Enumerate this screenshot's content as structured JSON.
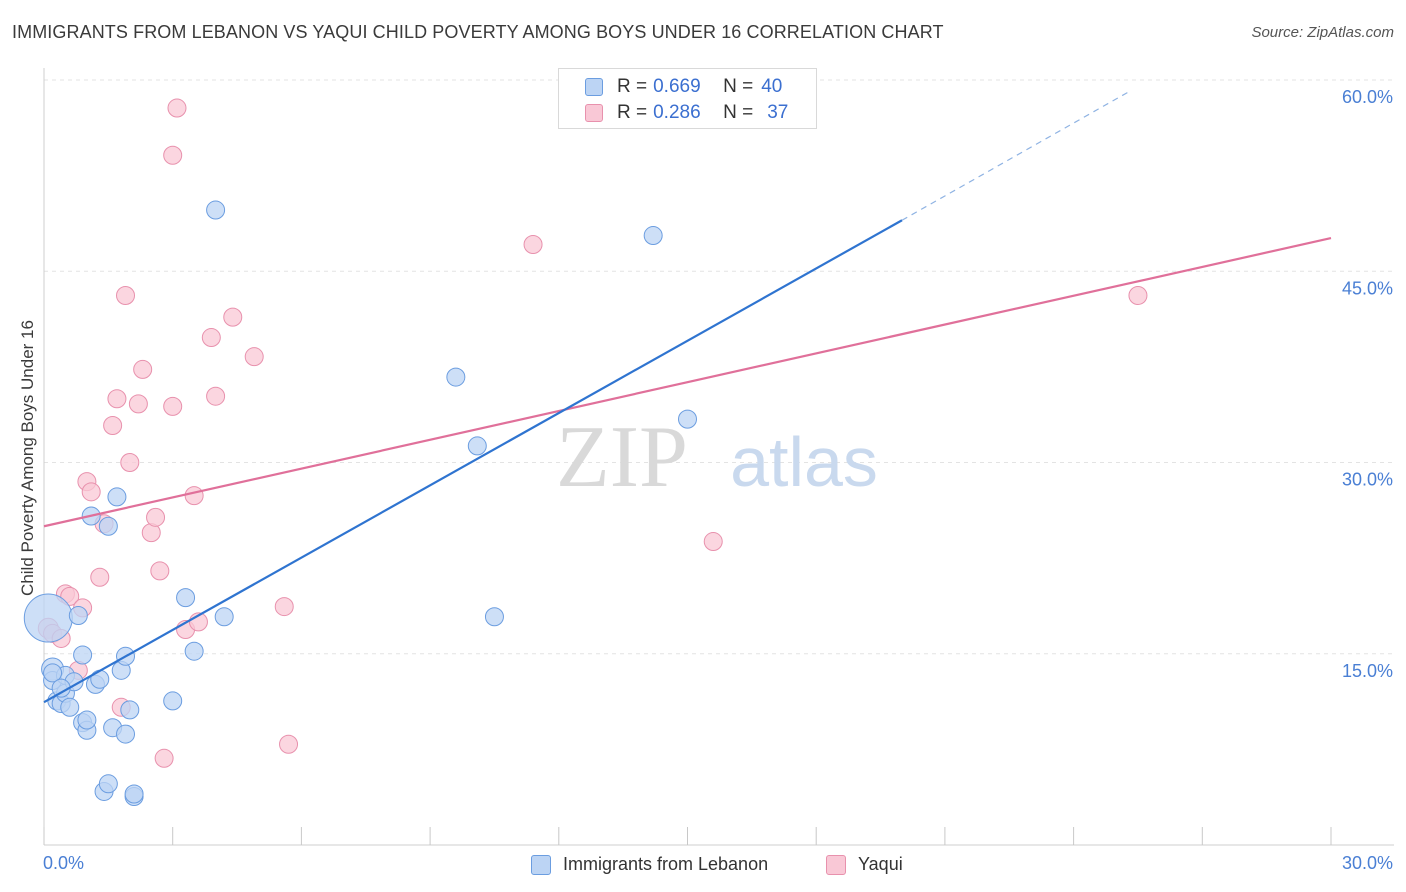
{
  "header": {
    "title": "IMMIGRANTS FROM LEBANON VS YAQUI CHILD POVERTY AMONG BOYS UNDER 16 CORRELATION CHART",
    "source": "Source: ZipAtlas.com"
  },
  "legend_top": {
    "rows": [
      {
        "r_label": "R =",
        "r_value": "0.669",
        "n_label": "N =",
        "n_value": "40"
      },
      {
        "r_label": "R =",
        "r_value": "0.286",
        "n_label": "N =",
        "n_value": "37"
      }
    ]
  },
  "legend_bottom": {
    "items": [
      "Immigrants from Lebanon",
      "Yaqui"
    ]
  },
  "watermark": {
    "zip": "ZIP",
    "atlas": "atlas"
  },
  "colors": {
    "blue_fill": "#bcd4f4",
    "blue_stroke": "#6b9de0",
    "blue_line": "#2f74d0",
    "pink_fill": "#f9c8d6",
    "pink_stroke": "#e891ad",
    "pink_line": "#e0709a",
    "tick_label": "#4a7fd4",
    "grid": "#e3e3e3"
  },
  "chart_data": {
    "type": "scatter",
    "title": "IMMIGRANTS FROM LEBANON VS YAQUI CHILD POVERTY AMONG BOYS UNDER 16 CORRELATION CHART",
    "xlabel": "",
    "ylabel": "Child Poverty Among Boys Under 16",
    "xlim": [
      0,
      30
    ],
    "ylim": [
      0,
      60
    ],
    "x_tick_labels": [
      {
        "value": 0,
        "label": "0.0%"
      },
      {
        "value": 30,
        "label": "30.0%"
      }
    ],
    "y_tick_labels": [
      {
        "value": 15,
        "label": "15.0%"
      },
      {
        "value": 30,
        "label": "30.0%"
      },
      {
        "value": 45,
        "label": "45.0%"
      },
      {
        "value": 60,
        "label": "60.0%"
      }
    ],
    "grid": true,
    "series": [
      {
        "name": "Immigrants from Lebanon",
        "R": 0.669,
        "N": 40,
        "trend": {
          "x0": 0,
          "y0": 11.2,
          "x1": 20.0,
          "y1": 49.0,
          "dashed_to_x": 25.3,
          "dashed_to_y": 59.1
        },
        "points": [
          [
            0.1,
            17.8,
            24
          ],
          [
            0.2,
            13.8,
            11
          ],
          [
            0.2,
            12.9,
            9
          ],
          [
            0.3,
            11.3,
            9
          ],
          [
            0.4,
            11.1,
            9
          ],
          [
            0.5,
            11.9,
            9
          ],
          [
            0.5,
            13.3,
            9
          ],
          [
            0.6,
            10.8,
            9
          ],
          [
            0.7,
            12.8,
            9
          ],
          [
            0.8,
            18.0,
            9
          ],
          [
            0.9,
            14.9,
            9
          ],
          [
            0.9,
            9.6,
            9
          ],
          [
            1.0,
            9.0,
            9
          ],
          [
            1.1,
            25.8,
            9
          ],
          [
            1.2,
            12.6,
            9
          ],
          [
            1.3,
            13.0,
            9
          ],
          [
            1.4,
            4.2,
            9
          ],
          [
            1.5,
            4.8,
            9
          ],
          [
            1.5,
            25.0,
            9
          ],
          [
            1.6,
            9.2,
            9
          ],
          [
            1.7,
            27.3,
            9
          ],
          [
            1.8,
            13.7,
            9
          ],
          [
            1.9,
            8.7,
            9
          ],
          [
            1.9,
            14.8,
            9
          ],
          [
            2.0,
            10.6,
            9
          ],
          [
            2.1,
            3.8,
            9
          ],
          [
            2.1,
            4.0,
            9
          ],
          [
            3.0,
            11.3,
            9
          ],
          [
            3.3,
            19.4,
            9
          ],
          [
            3.5,
            15.2,
            9
          ],
          [
            4.2,
            17.9,
            9
          ],
          [
            4.0,
            49.8,
            9
          ],
          [
            9.6,
            36.7,
            9
          ],
          [
            10.1,
            31.3,
            9
          ],
          [
            10.5,
            17.9,
            9
          ],
          [
            14.2,
            47.8,
            9
          ],
          [
            15.0,
            33.4,
            9
          ],
          [
            0.2,
            13.5,
            9
          ],
          [
            0.4,
            12.3,
            9
          ],
          [
            1.0,
            9.8,
            9
          ]
        ]
      },
      {
        "name": "Yaqui",
        "R": 0.286,
        "N": 37,
        "trend": {
          "x0": 0,
          "y0": 25.0,
          "x1": 30,
          "y1": 47.6
        },
        "points": [
          [
            0.1,
            17.0,
            10
          ],
          [
            0.2,
            16.6,
            9
          ],
          [
            0.4,
            16.2,
            9
          ],
          [
            0.5,
            19.7,
            9
          ],
          [
            0.6,
            19.5,
            9
          ],
          [
            0.8,
            13.7,
            9
          ],
          [
            0.9,
            18.6,
            9
          ],
          [
            1.0,
            28.5,
            9
          ],
          [
            1.1,
            27.7,
            9
          ],
          [
            1.3,
            21.0,
            9
          ],
          [
            1.4,
            25.2,
            9
          ],
          [
            1.6,
            32.9,
            9
          ],
          [
            1.7,
            35.0,
            9
          ],
          [
            1.8,
            10.8,
            9
          ],
          [
            1.9,
            43.1,
            9
          ],
          [
            2.0,
            30.0,
            9
          ],
          [
            2.2,
            34.6,
            9
          ],
          [
            2.3,
            37.3,
            9
          ],
          [
            2.5,
            24.5,
            9
          ],
          [
            2.6,
            25.7,
            9
          ],
          [
            2.7,
            21.5,
            9
          ],
          [
            2.8,
            6.8,
            9
          ],
          [
            3.0,
            54.1,
            9
          ],
          [
            3.0,
            34.4,
            9
          ],
          [
            3.1,
            57.8,
            9
          ],
          [
            3.3,
            16.9,
            9
          ],
          [
            3.5,
            27.4,
            9
          ],
          [
            3.6,
            17.5,
            9
          ],
          [
            3.9,
            39.8,
            9
          ],
          [
            4.0,
            35.2,
            9
          ],
          [
            4.4,
            41.4,
            9
          ],
          [
            4.9,
            38.3,
            9
          ],
          [
            5.6,
            18.7,
            9
          ],
          [
            5.7,
            7.9,
            9
          ],
          [
            11.4,
            47.1,
            9
          ],
          [
            15.6,
            23.8,
            9
          ],
          [
            25.5,
            43.1,
            9
          ]
        ]
      }
    ]
  }
}
